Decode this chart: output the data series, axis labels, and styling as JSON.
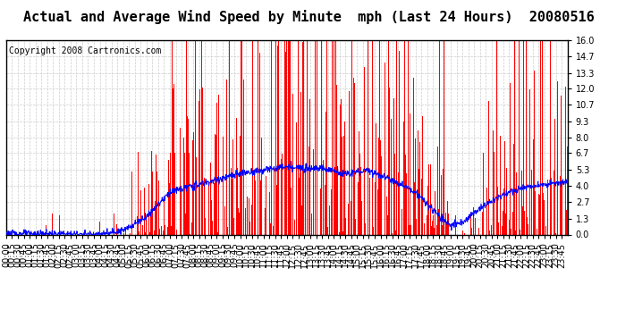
{
  "title": "Actual and Average Wind Speed by Minute  mph (Last 24 Hours)  20080516",
  "copyright": "Copyright 2008 Cartronics.com",
  "yticks": [
    0.0,
    1.3,
    2.7,
    4.0,
    5.3,
    6.7,
    8.0,
    9.3,
    10.7,
    12.0,
    13.3,
    14.7,
    16.0
  ],
  "ymax": 16.0,
  "bar_color": "#FF0000",
  "line_color": "#0000FF",
  "background_color": "#FFFFFF",
  "grid_color": "#CCCCCC",
  "title_fontsize": 11,
  "copyright_fontsize": 7,
  "tick_fontsize": 7
}
